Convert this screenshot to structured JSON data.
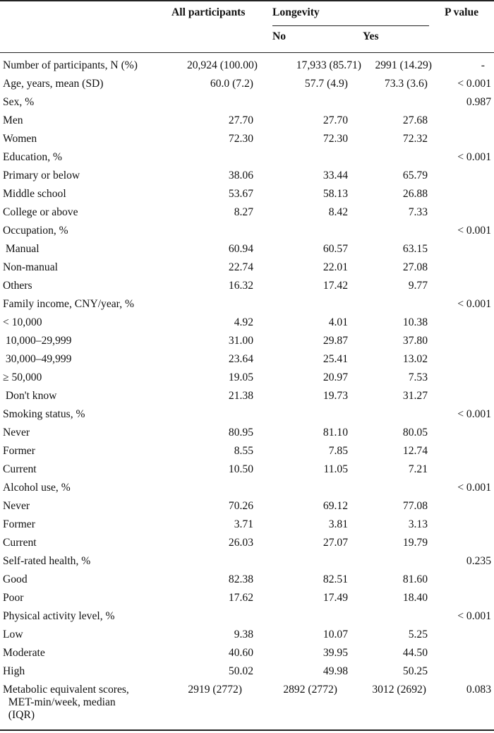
{
  "header": {
    "all": "All participants",
    "longevity": "Longevity",
    "pvalue": "P value",
    "no": "No",
    "yes": "Yes"
  },
  "rows": [
    {
      "label": "Number of participants, N (%)",
      "all": "20,924 (100.00)",
      "no": "17,933 (85.71)",
      "yes": "2991 (14.29)",
      "p": "-"
    },
    {
      "label": "Age, years, mean (SD)",
      "all": "60.0 (7.2)",
      "no": "57.7 (4.9)",
      "yes": "73.3 (3.6)",
      "p": "< 0.001"
    },
    {
      "label": "Sex, %",
      "all": "",
      "no": "",
      "yes": "",
      "p": "0.987"
    },
    {
      "label": "Men",
      "all": "27.70",
      "no": "27.70",
      "yes": "27.68",
      "p": ""
    },
    {
      "label": "Women",
      "all": "72.30",
      "no": "72.30",
      "yes": "72.32",
      "p": ""
    },
    {
      "label": "Education, %",
      "all": "",
      "no": "",
      "yes": "",
      "p": "< 0.001"
    },
    {
      "label": "Primary or below",
      "all": "38.06",
      "no": "33.44",
      "yes": "65.79",
      "p": ""
    },
    {
      "label": "Middle school",
      "all": "53.67",
      "no": "58.13",
      "yes": "26.88",
      "p": ""
    },
    {
      "label": "College or above",
      "all": "8.27",
      "no": "8.42",
      "yes": "7.33",
      "p": ""
    },
    {
      "label": "Occupation, %",
      "all": "",
      "no": "",
      "yes": "",
      "p": "< 0.001"
    },
    {
      "label": " Manual",
      "all": "60.94",
      "no": "60.57",
      "yes": "63.15",
      "p": ""
    },
    {
      "label": "Non-manual",
      "all": "22.74",
      "no": "22.01",
      "yes": "27.08",
      "p": ""
    },
    {
      "label": "Others",
      "all": "16.32",
      "no": "17.42",
      "yes": "9.77",
      "p": ""
    },
    {
      "label": "Family income, CNY/year, %",
      "all": "",
      "no": "",
      "yes": "",
      "p": "< 0.001"
    },
    {
      "label": "< 10,000",
      "all": "4.92",
      "no": "4.01",
      "yes": "10.38",
      "p": ""
    },
    {
      "label": " 10,000–29,999",
      "all": "31.00",
      "no": "29.87",
      "yes": "37.80",
      "p": ""
    },
    {
      "label": " 30,000–49,999",
      "all": "23.64",
      "no": "25.41",
      "yes": "13.02",
      "p": ""
    },
    {
      "label": "≥ 50,000",
      "all": "19.05",
      "no": "20.97",
      "yes": "7.53",
      "p": ""
    },
    {
      "label": " Don't know",
      "all": "21.38",
      "no": "19.73",
      "yes": "31.27",
      "p": ""
    },
    {
      "label": "Smoking status, %",
      "all": "",
      "no": "",
      "yes": "",
      "p": "< 0.001"
    },
    {
      "label": "Never",
      "all": "80.95",
      "no": "81.10",
      "yes": "80.05",
      "p": ""
    },
    {
      "label": "Former",
      "all": "8.55",
      "no": "7.85",
      "yes": "12.74",
      "p": ""
    },
    {
      "label": "Current",
      "all": "10.50",
      "no": "11.05",
      "yes": "7.21",
      "p": ""
    },
    {
      "label": "Alcohol use, %",
      "all": "",
      "no": "",
      "yes": "",
      "p": "< 0.001"
    },
    {
      "label": "Never",
      "all": "70.26",
      "no": "69.12",
      "yes": "77.08",
      "p": ""
    },
    {
      "label": "Former",
      "all": "3.71",
      "no": "3.81",
      "yes": "3.13",
      "p": ""
    },
    {
      "label": "Current",
      "all": "26.03",
      "no": "27.07",
      "yes": "19.79",
      "p": ""
    },
    {
      "label": "Self-rated health, %",
      "all": "",
      "no": "",
      "yes": "",
      "p": "0.235"
    },
    {
      "label": "Good",
      "all": "82.38",
      "no": "82.51",
      "yes": "81.60",
      "p": ""
    },
    {
      "label": "Poor",
      "all": "17.62",
      "no": "17.49",
      "yes": "18.40",
      "p": ""
    },
    {
      "label": "Physical activity level, %",
      "all": "",
      "no": "",
      "yes": "",
      "p": "< 0.001"
    },
    {
      "label": "Low",
      "all": "9.38",
      "no": "10.07",
      "yes": "5.25",
      "p": ""
    },
    {
      "label": "Moderate",
      "all": "40.60",
      "no": "39.95",
      "yes": "44.50",
      "p": ""
    },
    {
      "label": "High",
      "all": "50.02",
      "no": "49.98",
      "yes": "50.25",
      "p": ""
    },
    {
      "label": "Metabolic equivalent scores,\n  MET-min/week, median\n  (IQR)",
      "all": "2919 (2772)",
      "no": "2892 (2772)",
      "yes": "3012 (2692)",
      "p": "0.083"
    }
  ]
}
